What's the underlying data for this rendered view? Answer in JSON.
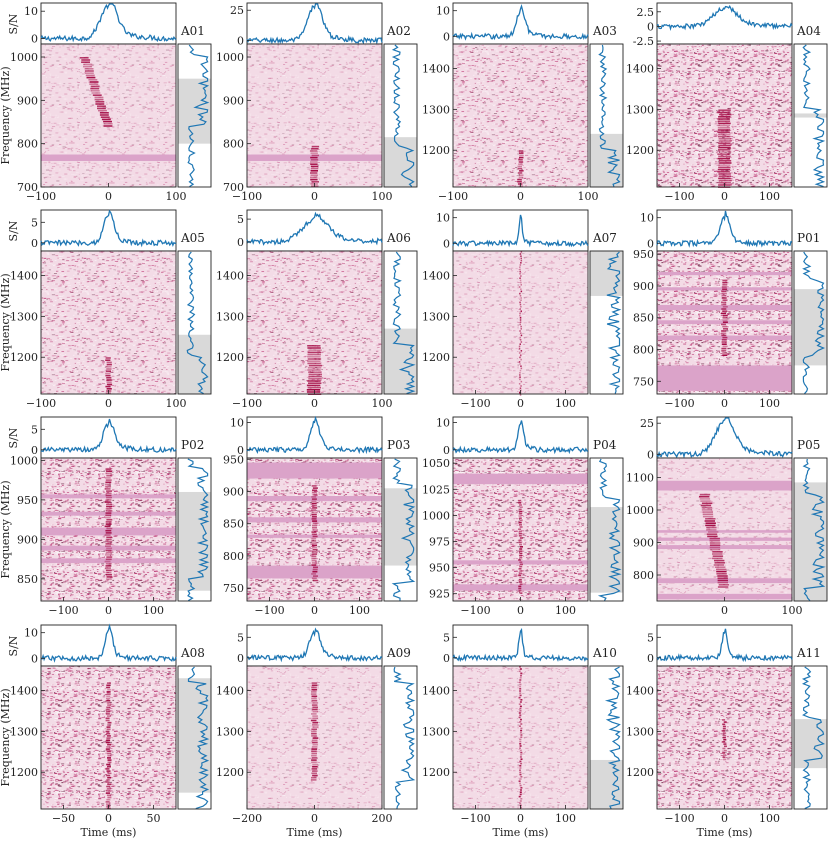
{
  "figure": {
    "ylabel_sn": "S/N",
    "ylabel_freq": "Frequency (MHz)",
    "xlabel": "Time (ms)"
  },
  "colors": {
    "profile": "#1f77b4",
    "band": "#d9d9d9",
    "waterfall_base": "#f3dbe6",
    "waterfall_dark": "#a0003c",
    "flag": "#dba3c9"
  },
  "chart_data": [
    {
      "name": "A01",
      "type": "heatmap",
      "xlim": [
        -100,
        100
      ],
      "xticks": [
        -100,
        0,
        100
      ],
      "sn_ticks": [
        0,
        10
      ],
      "sn_lim": [
        -2,
        13
      ],
      "freq_lim": [
        700,
        1030
      ],
      "freq_ticks": [
        700,
        800,
        900,
        1000
      ],
      "band": [
        800,
        950
      ],
      "peak": 12,
      "width": 12,
      "signal_freq": [
        840,
        1000
      ],
      "sweep": 35,
      "flags": [
        [
          760,
          775
        ]
      ],
      "pattern": "light"
    },
    {
      "name": "A02",
      "type": "heatmap",
      "xlim": [
        -100,
        100
      ],
      "xticks": [
        -100,
        0,
        100
      ],
      "sn_ticks": [
        0,
        25
      ],
      "sn_lim": [
        -3,
        31
      ],
      "freq_lim": [
        700,
        1030
      ],
      "freq_ticks": [
        700,
        800,
        900,
        1000
      ],
      "band": [
        700,
        815
      ],
      "peak": 28,
      "width": 10,
      "signal_freq": [
        700,
        795
      ],
      "sweep": 0,
      "flags": [
        [
          760,
          775
        ]
      ],
      "pattern": "light"
    },
    {
      "name": "A03",
      "type": "heatmap",
      "xlim": [
        -100,
        100
      ],
      "xticks": [
        -100,
        0,
        100
      ],
      "sn_ticks": [
        0,
        10
      ],
      "sn_lim": [
        -3,
        13
      ],
      "freq_lim": [
        1110,
        1460
      ],
      "freq_ticks": [
        1200,
        1300,
        1400
      ],
      "band": [
        1110,
        1240
      ],
      "peak": 10,
      "width": 6,
      "signal_freq": [
        1110,
        1200
      ],
      "sweep": 0,
      "flags": [],
      "pattern": "medium"
    },
    {
      "name": "A04",
      "type": "heatmap",
      "xlim": [
        -150,
        150
      ],
      "xticks": [
        -100,
        0,
        100
      ],
      "sn_ticks": [
        -2.5,
        0.0,
        2.5
      ],
      "sn_lim": [
        -3,
        4
      ],
      "freq_lim": [
        1110,
        1460
      ],
      "freq_ticks": [
        1200,
        1300,
        1400
      ],
      "band": [
        1280,
        1290
      ],
      "peak": 3,
      "width": 25,
      "signal_freq": [
        1110,
        1300
      ],
      "sweep": 0,
      "flags": [],
      "pattern": "dense"
    },
    {
      "name": "A05",
      "type": "heatmap",
      "xlim": [
        -100,
        100
      ],
      "xticks": [
        -100,
        0,
        100
      ],
      "sn_ticks": [
        0,
        5
      ],
      "sn_lim": [
        -2,
        8
      ],
      "freq_lim": [
        1110,
        1460
      ],
      "freq_ticks": [
        1200,
        1300,
        1400
      ],
      "band": [
        1110,
        1255
      ],
      "peak": 7,
      "width": 7,
      "signal_freq": [
        1110,
        1200
      ],
      "sweep": 0,
      "flags": [],
      "pattern": "medium"
    },
    {
      "name": "A06",
      "type": "heatmap",
      "xlim": [
        -100,
        100
      ],
      "xticks": [
        -100,
        0,
        100
      ],
      "sn_ticks": [
        0,
        5
      ],
      "sn_lim": [
        -2,
        7
      ],
      "freq_lim": [
        1110,
        1460
      ],
      "freq_ticks": [
        1200,
        1300,
        1400
      ],
      "band": [
        1110,
        1270
      ],
      "peak": 5,
      "width": 18,
      "signal_freq": [
        1110,
        1230
      ],
      "sweep": 0,
      "flags": [],
      "pattern": "medium"
    },
    {
      "name": "A07",
      "type": "heatmap",
      "xlim": [
        -150,
        150
      ],
      "xticks": [
        -100,
        0,
        100
      ],
      "sn_ticks": [
        0,
        10
      ],
      "sn_lim": [
        -3,
        13
      ],
      "freq_lim": [
        1110,
        1460
      ],
      "freq_ticks": [
        1200,
        1300,
        1400
      ],
      "band": [
        1350,
        1460
      ],
      "peak": 11,
      "width": 3,
      "signal_freq": [
        1110,
        1460
      ],
      "sweep": 0,
      "flags": [],
      "pattern": "light"
    },
    {
      "name": "P01",
      "type": "heatmap",
      "xlim": [
        -150,
        150
      ],
      "xticks": [
        -100,
        0,
        100
      ],
      "sn_ticks": [
        0,
        10
      ],
      "sn_lim": [
        -3,
        13
      ],
      "freq_lim": [
        730,
        955
      ],
      "freq_ticks": [
        750,
        800,
        850,
        900,
        950
      ],
      "band": [
        775,
        895
      ],
      "peak": 10,
      "width": 10,
      "signal_freq": [
        790,
        910
      ],
      "sweep": 0,
      "flags": [
        [
          735,
          775
        ],
        [
          815,
          822
        ],
        [
          840,
          846
        ],
        [
          862,
          870
        ],
        [
          893,
          898
        ],
        [
          917,
          922
        ]
      ],
      "pattern": "dense"
    },
    {
      "name": "P02",
      "type": "heatmap",
      "xlim": [
        -150,
        150
      ],
      "xticks": [
        -100,
        0,
        100
      ],
      "sn_ticks": [
        0,
        5
      ],
      "sn_lim": [
        -2,
        8
      ],
      "freq_lim": [
        822,
        1003
      ],
      "freq_ticks": [
        850,
        900,
        950,
        1000
      ],
      "band": [
        835,
        960
      ],
      "peak": 6,
      "width": 12,
      "signal_freq": [
        850,
        990
      ],
      "sweep": 0,
      "flags": [
        [
          870,
          876
        ],
        [
          886,
          892
        ],
        [
          905,
          915
        ],
        [
          930,
          935
        ],
        [
          952,
          957
        ]
      ],
      "pattern": "dense"
    },
    {
      "name": "P03",
      "type": "heatmap",
      "xlim": [
        -150,
        150
      ],
      "xticks": [
        -100,
        0,
        100
      ],
      "sn_ticks": [
        0,
        10
      ],
      "sn_lim": [
        -3,
        12
      ],
      "freq_lim": [
        730,
        952
      ],
      "freq_ticks": [
        750,
        800,
        850,
        900,
        950
      ],
      "band": [
        785,
        905
      ],
      "peak": 10,
      "width": 10,
      "signal_freq": [
        760,
        910
      ],
      "sweep": 0,
      "flags": [
        [
          765,
          785
        ],
        [
          828,
          833
        ],
        [
          852,
          860
        ],
        [
          885,
          893
        ],
        [
          920,
          945
        ]
      ],
      "pattern": "dense"
    },
    {
      "name": "P04",
      "type": "heatmap",
      "xlim": [
        -150,
        150
      ],
      "xticks": [
        -100,
        0,
        100
      ],
      "sn_ticks": [
        0,
        10
      ],
      "sn_lim": [
        -3,
        12
      ],
      "freq_lim": [
        918,
        1055
      ],
      "freq_ticks": [
        925,
        950,
        975,
        1000,
        1025,
        1050
      ],
      "band": [
        926,
        1008
      ],
      "peak": 10,
      "width": 6,
      "signal_freq": [
        925,
        1015
      ],
      "sweep": 0,
      "flags": [
        [
          928,
          934
        ],
        [
          953,
          957
        ],
        [
          1030,
          1040
        ]
      ],
      "pattern": "dense"
    },
    {
      "name": "P05",
      "type": "heatmap",
      "xlim": [
        -100,
        100
      ],
      "xticks": [
        0,
        100
      ],
      "sn_ticks": [
        0,
        25
      ],
      "sn_lim": [
        -3,
        30
      ],
      "freq_lim": [
        720,
        1160
      ],
      "freq_ticks": [
        800,
        900,
        1000,
        1100
      ],
      "band": [
        720,
        1085
      ],
      "peak": 26,
      "width": 14,
      "signal_freq": [
        760,
        1050
      ],
      "sweep": 30,
      "flags": [
        [
          725,
          742
        ],
        [
          775,
          790
        ],
        [
          880,
          892
        ],
        [
          905,
          915
        ],
        [
          930,
          938
        ],
        [
          1060,
          1090
        ]
      ],
      "pattern": "light"
    },
    {
      "name": "A08",
      "type": "heatmap",
      "xlim": [
        -75,
        75
      ],
      "xticks": [
        -50,
        0,
        50
      ],
      "sn_ticks": [
        0,
        10
      ],
      "sn_lim": [
        -3,
        13
      ],
      "freq_lim": [
        1110,
        1460
      ],
      "freq_ticks": [
        1200,
        1300,
        1400
      ],
      "band": [
        1150,
        1430
      ],
      "peak": 11,
      "width": 4,
      "signal_freq": [
        1110,
        1420
      ],
      "sweep": 0,
      "flags": [],
      "pattern": "dense"
    },
    {
      "name": "A09",
      "type": "heatmap",
      "xlim": [
        -200,
        200
      ],
      "xticks": [
        -200,
        0,
        200
      ],
      "sn_ticks": [
        0,
        5
      ],
      "sn_lim": [
        -2,
        8
      ],
      "freq_lim": [
        1110,
        1460
      ],
      "freq_ticks": [
        1200,
        1300,
        1400
      ],
      "band": [
        1110,
        1110
      ],
      "peak": 6,
      "width": 15,
      "signal_freq": [
        1180,
        1420
      ],
      "sweep": 0,
      "flags": [],
      "pattern": "light"
    },
    {
      "name": "A10",
      "type": "heatmap",
      "xlim": [
        -150,
        150
      ],
      "xticks": [
        -100,
        0,
        100
      ],
      "sn_ticks": [
        0,
        5
      ],
      "sn_lim": [
        -2,
        8
      ],
      "freq_lim": [
        1110,
        1460
      ],
      "freq_ticks": [
        1200,
        1300,
        1400
      ],
      "band": [
        1110,
        1230
      ],
      "peak": 6,
      "width": 4,
      "signal_freq": [
        1110,
        1460
      ],
      "sweep": 0,
      "flags": [],
      "pattern": "light"
    },
    {
      "name": "A11",
      "type": "heatmap",
      "xlim": [
        -150,
        150
      ],
      "xticks": [
        -100,
        0,
        100
      ],
      "sn_ticks": [
        0,
        5
      ],
      "sn_lim": [
        -2,
        8
      ],
      "freq_lim": [
        1110,
        1460
      ],
      "freq_ticks": [
        1200,
        1300,
        1400
      ],
      "band": [
        1210,
        1330
      ],
      "peak": 6,
      "width": 6,
      "signal_freq": [
        1230,
        1330
      ],
      "sweep": 0,
      "flags": [],
      "pattern": "dense"
    }
  ]
}
